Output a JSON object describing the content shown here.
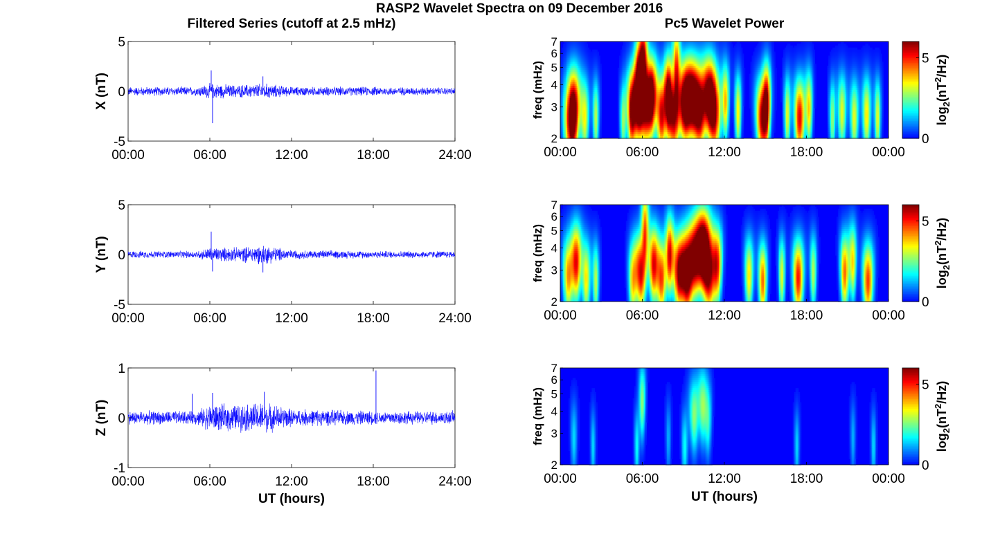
{
  "figure": {
    "title": "RASP2 Wavelet Spectra on 09 December 2016",
    "left_column_title": "Filtered Series (cutoff at 2.5 mHz)",
    "right_column_title": "Pc5 Wavelet Power"
  },
  "chart_data": [
    {
      "type": "line",
      "component": "X",
      "ylabel": "X (nT)",
      "xlabel": "",
      "xlim": [
        0,
        24
      ],
      "ylim": [
        -5,
        5
      ],
      "xticks": [
        "00:00",
        "06:00",
        "12:00",
        "18:00",
        "24:00"
      ],
      "yticks": [
        "5",
        "0",
        "-5"
      ],
      "line_color": "#0000ff",
      "series": [
        {
          "x_hours": [
            0,
            6.1,
            6.2,
            6.3,
            9.9,
            24
          ],
          "y": [
            0,
            2.1,
            -3.2,
            0,
            1.5,
            0
          ]
        }
      ],
      "envelope": [
        {
          "hour": 0,
          "amp": 0.5
        },
        {
          "hour": 5,
          "amp": 0.5
        },
        {
          "hour": 6,
          "amp": 0.9
        },
        {
          "hour": 8,
          "amp": 0.7
        },
        {
          "hour": 10,
          "amp": 0.9
        },
        {
          "hour": 12,
          "amp": 0.5
        },
        {
          "hour": 18,
          "amp": 0.5
        },
        {
          "hour": 24,
          "amp": 0.4
        }
      ]
    },
    {
      "type": "line",
      "component": "Y",
      "ylabel": "Y (nT)",
      "xlabel": "",
      "xlim": [
        0,
        24
      ],
      "ylim": [
        -5,
        5
      ],
      "xticks": [
        "00:00",
        "06:00",
        "12:00",
        "18:00",
        "24:00"
      ],
      "yticks": [
        "5",
        "0",
        "-5"
      ],
      "line_color": "#0000ff",
      "series": [
        {
          "x_hours": [
            0,
            6.1,
            6.2,
            9.9,
            24
          ],
          "y": [
            0,
            2.3,
            -1.7,
            -1.8,
            0
          ]
        }
      ],
      "envelope": [
        {
          "hour": 0,
          "amp": 0.4
        },
        {
          "hour": 5,
          "amp": 0.4
        },
        {
          "hour": 6,
          "amp": 0.8
        },
        {
          "hour": 8,
          "amp": 0.8
        },
        {
          "hour": 10,
          "amp": 1.1
        },
        {
          "hour": 12,
          "amp": 0.5
        },
        {
          "hour": 18,
          "amp": 0.4
        },
        {
          "hour": 24,
          "amp": 0.4
        }
      ]
    },
    {
      "type": "line",
      "component": "Z",
      "ylabel": "Z (nT)",
      "xlabel": "UT (hours)",
      "xlim": [
        0,
        24
      ],
      "ylim": [
        -1,
        1
      ],
      "xticks": [
        "00:00",
        "06:00",
        "12:00",
        "18:00",
        "24:00"
      ],
      "yticks": [
        "1",
        "0",
        "-1"
      ],
      "line_color": "#0000ff",
      "series": [
        {
          "x_hours": [
            0,
            4.7,
            6.2,
            10,
            18.2,
            24
          ],
          "y": [
            0,
            0.48,
            0.5,
            0.52,
            0.95,
            0
          ]
        }
      ],
      "envelope": [
        {
          "hour": 0,
          "amp": 0.15
        },
        {
          "hour": 5,
          "amp": 0.15
        },
        {
          "hour": 6,
          "amp": 0.3
        },
        {
          "hour": 8,
          "amp": 0.3
        },
        {
          "hour": 10,
          "amp": 0.35
        },
        {
          "hour": 12,
          "amp": 0.2
        },
        {
          "hour": 18,
          "amp": 0.15
        },
        {
          "hour": 24,
          "amp": 0.15
        }
      ]
    },
    {
      "type": "heatmap",
      "component": "X",
      "ylabel": "freq (mHz)",
      "xlabel": "",
      "xlim": [
        0,
        24
      ],
      "ylim": [
        2,
        7
      ],
      "yscale": "log",
      "xticks": [
        "00:00",
        "06:00",
        "12:00",
        "18:00",
        "00:00"
      ],
      "yticks": [
        "2",
        "3",
        "4",
        "5",
        "6",
        "7"
      ],
      "colorbar": {
        "label_prefix": "log",
        "label_sub": "2",
        "label_mid": "(nT",
        "label_sup": "2",
        "label_suffix": "/Hz)",
        "range": [
          0,
          6
        ],
        "ticks": [
          "0",
          "5"
        ],
        "colormap": "jet"
      },
      "bursts": [
        [
          0.8,
          2.4,
          0.35,
          0.9
        ],
        [
          1.0,
          3.2,
          0.25,
          0.6
        ],
        [
          1.8,
          2.6,
          0.2,
          0.55
        ],
        [
          2.6,
          2.6,
          0.15,
          0.5
        ],
        [
          4.6,
          2.5,
          0.15,
          0.45
        ],
        [
          5.2,
          2.7,
          0.2,
          0.8
        ],
        [
          5.7,
          3.1,
          0.3,
          1.0
        ],
        [
          5.8,
          4.5,
          0.15,
          0.8
        ],
        [
          6.3,
          2.9,
          0.25,
          0.8
        ],
        [
          6.7,
          3.4,
          0.2,
          0.9
        ],
        [
          6.1,
          6.0,
          0.12,
          0.6
        ],
        [
          7.4,
          2.7,
          0.25,
          0.9
        ],
        [
          7.9,
          3.6,
          0.15,
          0.7
        ],
        [
          8.3,
          2.7,
          0.3,
          1.0
        ],
        [
          8.5,
          5.5,
          0.12,
          0.6
        ],
        [
          9.1,
          3.0,
          0.25,
          0.9
        ],
        [
          9.6,
          3.3,
          0.3,
          1.0
        ],
        [
          10.2,
          2.8,
          0.3,
          1.0
        ],
        [
          10.9,
          3.5,
          0.25,
          0.8
        ],
        [
          11.3,
          2.7,
          0.3,
          0.9
        ],
        [
          12.1,
          3.2,
          0.15,
          0.6
        ],
        [
          13.0,
          2.8,
          0.15,
          0.6
        ],
        [
          14.8,
          2.6,
          0.3,
          1.0
        ],
        [
          15.1,
          3.3,
          0.15,
          0.6
        ],
        [
          16.6,
          2.7,
          0.15,
          0.55
        ],
        [
          17.5,
          2.6,
          0.25,
          0.9
        ],
        [
          18.2,
          2.9,
          0.15,
          0.6
        ],
        [
          19.9,
          2.6,
          0.15,
          0.45
        ],
        [
          20.6,
          2.8,
          0.2,
          0.55
        ],
        [
          21.5,
          2.6,
          0.2,
          0.55
        ],
        [
          22.4,
          2.7,
          0.2,
          0.6
        ],
        [
          23.2,
          2.6,
          0.15,
          0.55
        ]
      ]
    },
    {
      "type": "heatmap",
      "component": "Y",
      "ylabel": "freq (mHz)",
      "xlabel": "",
      "xlim": [
        0,
        24
      ],
      "ylim": [
        2,
        7
      ],
      "yscale": "log",
      "xticks": [
        "00:00",
        "06:00",
        "12:00",
        "18:00",
        "00:00"
      ],
      "yticks": [
        "2",
        "3",
        "4",
        "5",
        "6",
        "7"
      ],
      "colorbar": {
        "label_prefix": "log",
        "label_sub": "2",
        "label_mid": "(nT",
        "label_sup": "2",
        "label_suffix": "/Hz)",
        "range": [
          0,
          6
        ],
        "ticks": [
          "0",
          "5"
        ],
        "colormap": "jet"
      },
      "bursts": [
        [
          0.6,
          2.8,
          0.25,
          0.7
        ],
        [
          1.2,
          3.3,
          0.2,
          0.8
        ],
        [
          1.9,
          2.7,
          0.2,
          0.6
        ],
        [
          2.6,
          2.6,
          0.15,
          0.5
        ],
        [
          5.3,
          2.6,
          0.2,
          0.6
        ],
        [
          5.9,
          2.9,
          0.25,
          0.9
        ],
        [
          6.2,
          5.5,
          0.12,
          0.6
        ],
        [
          6.8,
          3.2,
          0.2,
          0.8
        ],
        [
          7.4,
          2.7,
          0.25,
          0.8
        ],
        [
          8.0,
          3.7,
          0.15,
          0.7
        ],
        [
          8.7,
          2.9,
          0.3,
          1.0
        ],
        [
          9.3,
          2.7,
          0.25,
          0.9
        ],
        [
          9.9,
          3.5,
          0.3,
          1.0
        ],
        [
          10.5,
          4.0,
          0.25,
          0.9
        ],
        [
          10.9,
          2.8,
          0.3,
          0.9
        ],
        [
          11.5,
          3.2,
          0.2,
          0.7
        ],
        [
          13.8,
          2.8,
          0.2,
          0.6
        ],
        [
          14.8,
          2.6,
          0.2,
          0.75
        ],
        [
          16.2,
          2.8,
          0.15,
          0.55
        ],
        [
          17.4,
          2.7,
          0.25,
          0.85
        ],
        [
          18.5,
          2.9,
          0.15,
          0.5
        ],
        [
          20.8,
          2.9,
          0.2,
          0.75
        ],
        [
          21.4,
          3.3,
          0.15,
          0.6
        ],
        [
          22.5,
          2.6,
          0.25,
          0.8
        ]
      ]
    },
    {
      "type": "heatmap",
      "component": "Z",
      "ylabel": "freq (mHz)",
      "xlabel": "UT (hours)",
      "xlim": [
        0,
        24
      ],
      "ylim": [
        2,
        7
      ],
      "yscale": "log",
      "xticks": [
        "00:00",
        "06:00",
        "12:00",
        "18:00",
        "00:00"
      ],
      "yticks": [
        "2",
        "3",
        "4",
        "5",
        "6",
        "7"
      ],
      "colorbar": {
        "label_prefix": "log",
        "label_sub": "2",
        "label_mid": "(nT",
        "label_sup": "2",
        "label_suffix": "/Hz)",
        "range": [
          0,
          6
        ],
        "ticks": [
          "0",
          "5"
        ],
        "colormap": "jet"
      },
      "bursts": [
        [
          1.0,
          2.8,
          0.15,
          0.25
        ],
        [
          2.4,
          2.5,
          0.12,
          0.25
        ],
        [
          5.6,
          2.5,
          0.12,
          0.3
        ],
        [
          6.0,
          4.5,
          0.12,
          0.45
        ],
        [
          7.9,
          2.8,
          0.12,
          0.2
        ],
        [
          9.1,
          2.5,
          0.15,
          0.3
        ],
        [
          9.8,
          3.8,
          0.2,
          0.45
        ],
        [
          10.4,
          4.2,
          0.15,
          0.4
        ],
        [
          10.8,
          3.6,
          0.15,
          0.35
        ],
        [
          17.3,
          2.5,
          0.12,
          0.25
        ],
        [
          21.4,
          2.8,
          0.12,
          0.2
        ],
        [
          22.9,
          2.5,
          0.12,
          0.25
        ]
      ]
    }
  ]
}
